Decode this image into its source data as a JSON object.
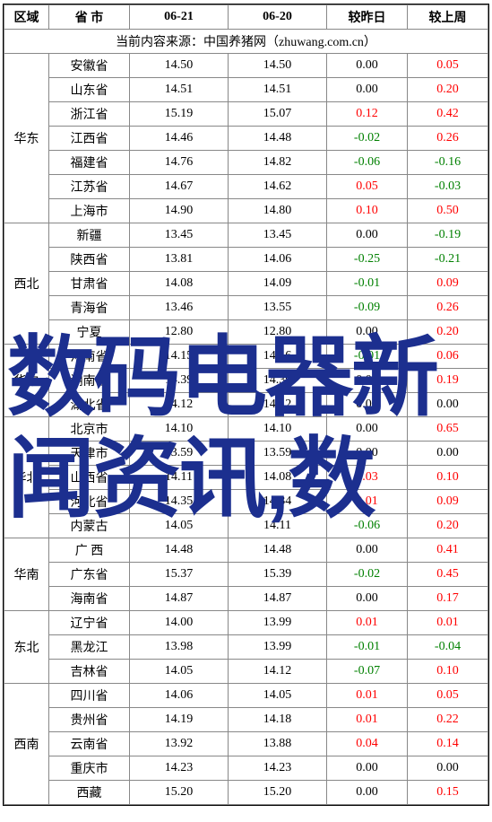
{
  "header": {
    "region": "区域",
    "province": "省 市",
    "date1": "06-21",
    "date2": "06-20",
    "vs_yesterday": "较昨日",
    "vs_lastweek": "较上周"
  },
  "source_text": "当前内容来源：中国养猪网（zhuwang.com.cn）",
  "watermark_text": "数码电器新闻资讯,数",
  "colors": {
    "pos": "#ff0000",
    "neg": "#008000",
    "zero": "#000000",
    "watermark": "#1c2f8f",
    "border": "#888888",
    "bg": "#ffffff"
  },
  "regions": [
    {
      "name": "华东",
      "rows": [
        {
          "prov": "安徽省",
          "d1": "14.50",
          "d2": "14.50",
          "y": "0.00",
          "yc": "black",
          "w": "0.05",
          "wc": "red"
        },
        {
          "prov": "山东省",
          "d1": "14.51",
          "d2": "14.51",
          "y": "0.00",
          "yc": "black",
          "w": "0.20",
          "wc": "red"
        },
        {
          "prov": "浙江省",
          "d1": "15.19",
          "d2": "15.07",
          "y": "0.12",
          "yc": "red",
          "w": "0.42",
          "wc": "red"
        },
        {
          "prov": "江西省",
          "d1": "14.46",
          "d2": "14.48",
          "y": "-0.02",
          "yc": "green",
          "w": "0.26",
          "wc": "red"
        },
        {
          "prov": "福建省",
          "d1": "14.76",
          "d2": "14.82",
          "y": "-0.06",
          "yc": "green",
          "w": "-0.16",
          "wc": "green"
        },
        {
          "prov": "江苏省",
          "d1": "14.67",
          "d2": "14.62",
          "y": "0.05",
          "yc": "red",
          "w": "-0.03",
          "wc": "green"
        },
        {
          "prov": "上海市",
          "d1": "14.90",
          "d2": "14.80",
          "y": "0.10",
          "yc": "red",
          "w": "0.50",
          "wc": "red"
        }
      ]
    },
    {
      "name": "西北",
      "rows": [
        {
          "prov": "新疆",
          "d1": "13.45",
          "d2": "13.45",
          "y": "0.00",
          "yc": "black",
          "w": "-0.19",
          "wc": "green"
        },
        {
          "prov": "陕西省",
          "d1": "13.81",
          "d2": "14.06",
          "y": "-0.25",
          "yc": "green",
          "w": "-0.21",
          "wc": "green"
        },
        {
          "prov": "甘肃省",
          "d1": "14.08",
          "d2": "14.09",
          "y": "-0.01",
          "yc": "green",
          "w": "0.09",
          "wc": "red"
        },
        {
          "prov": "青海省",
          "d1": "13.46",
          "d2": "13.55",
          "y": "-0.09",
          "yc": "green",
          "w": "0.26",
          "wc": "red"
        },
        {
          "prov": "宁夏",
          "d1": "12.80",
          "d2": "12.80",
          "y": "0.00",
          "yc": "black",
          "w": "0.20",
          "wc": "red"
        }
      ]
    },
    {
      "name": "华中",
      "rows": [
        {
          "prov": "河南省",
          "d1": "14.15",
          "d2": "14.16",
          "y": "-0.01",
          "yc": "green",
          "w": "0.06",
          "wc": "red"
        },
        {
          "prov": "湖南省",
          "d1": "14.39",
          "d2": "14.39",
          "y": "0.00",
          "yc": "black",
          "w": "0.19",
          "wc": "red"
        },
        {
          "prov": "湖北省",
          "d1": "14.12",
          "d2": "14.12",
          "y": "0.00",
          "yc": "black",
          "w": "0.00",
          "wc": "black"
        }
      ]
    },
    {
      "name": "华北",
      "rows": [
        {
          "prov": "北京市",
          "d1": "14.10",
          "d2": "14.10",
          "y": "0.00",
          "yc": "black",
          "w": "0.65",
          "wc": "red"
        },
        {
          "prov": "天津市",
          "d1": "13.59",
          "d2": "13.59",
          "y": "0.00",
          "yc": "black",
          "w": "0.00",
          "wc": "black"
        },
        {
          "prov": "山西省",
          "d1": "14.11",
          "d2": "14.08",
          "y": "0.03",
          "yc": "red",
          "w": "0.10",
          "wc": "red"
        },
        {
          "prov": "河北省",
          "d1": "14.35",
          "d2": "14.34",
          "y": "0.01",
          "yc": "red",
          "w": "0.09",
          "wc": "red"
        },
        {
          "prov": "内蒙古",
          "d1": "14.05",
          "d2": "14.11",
          "y": "-0.06",
          "yc": "green",
          "w": "0.20",
          "wc": "red"
        }
      ]
    },
    {
      "name": "华南",
      "rows": [
        {
          "prov": "广 西",
          "d1": "14.48",
          "d2": "14.48",
          "y": "0.00",
          "yc": "black",
          "w": "0.41",
          "wc": "red"
        },
        {
          "prov": "广东省",
          "d1": "15.37",
          "d2": "15.39",
          "y": "-0.02",
          "yc": "green",
          "w": "0.45",
          "wc": "red"
        },
        {
          "prov": "海南省",
          "d1": "14.87",
          "d2": "14.87",
          "y": "0.00",
          "yc": "black",
          "w": "0.17",
          "wc": "red"
        }
      ]
    },
    {
      "name": "东北",
      "rows": [
        {
          "prov": "辽宁省",
          "d1": "14.00",
          "d2": "13.99",
          "y": "0.01",
          "yc": "red",
          "w": "0.01",
          "wc": "red"
        },
        {
          "prov": "黑龙江",
          "d1": "13.98",
          "d2": "13.99",
          "y": "-0.01",
          "yc": "green",
          "w": "-0.04",
          "wc": "green"
        },
        {
          "prov": "吉林省",
          "d1": "14.05",
          "d2": "14.12",
          "y": "-0.07",
          "yc": "green",
          "w": "0.10",
          "wc": "red"
        }
      ]
    },
    {
      "name": "西南",
      "rows": [
        {
          "prov": "四川省",
          "d1": "14.06",
          "d2": "14.05",
          "y": "0.01",
          "yc": "red",
          "w": "0.05",
          "wc": "red"
        },
        {
          "prov": "贵州省",
          "d1": "14.19",
          "d2": "14.18",
          "y": "0.01",
          "yc": "red",
          "w": "0.22",
          "wc": "red"
        },
        {
          "prov": "云南省",
          "d1": "13.92",
          "d2": "13.88",
          "y": "0.04",
          "yc": "red",
          "w": "0.14",
          "wc": "red"
        },
        {
          "prov": "重庆市",
          "d1": "14.23",
          "d2": "14.23",
          "y": "0.00",
          "yc": "black",
          "w": "0.00",
          "wc": "black"
        },
        {
          "prov": "西藏",
          "d1": "15.20",
          "d2": "15.20",
          "y": "0.00",
          "yc": "black",
          "w": "0.15",
          "wc": "red"
        }
      ]
    }
  ]
}
